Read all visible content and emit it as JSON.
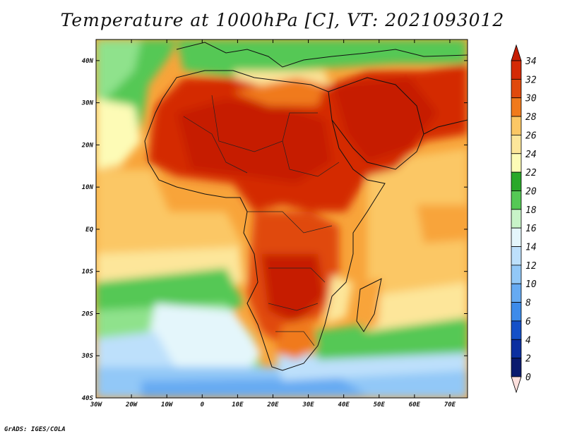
{
  "title": "Temperature at 1000hPa [C], VT: 2021093012",
  "credit": "GrADS: IGES/COLA",
  "map": {
    "lon_range": [
      -30,
      75
    ],
    "lat_range": [
      -40,
      45
    ],
    "lon_ticks": [
      "30W",
      "20W",
      "10W",
      "0",
      "10E",
      "20E",
      "30E",
      "40E",
      "50E",
      "60E",
      "70E"
    ],
    "lat_ticks": [
      "40N",
      "30N",
      "20N",
      "10N",
      "EQ",
      "10S",
      "20S",
      "30S",
      "40S"
    ]
  },
  "colorbar": {
    "labels": [
      "34",
      "32",
      "30",
      "28",
      "26",
      "24",
      "22",
      "20",
      "18",
      "16",
      "14",
      "12",
      "10",
      "8",
      "6",
      "4",
      "2",
      "0"
    ],
    "colors": [
      "#fde0dd",
      "#0a1a6e",
      "#0b2fa0",
      "#1450c8",
      "#2b6fe0",
      "#3d8bea",
      "#66aaf2",
      "#92c8f7",
      "#bde0fb",
      "#e4f6fb",
      "#c8f3c8",
      "#8fe28c",
      "#55c855",
      "#2aa82a",
      "#fdfbb6",
      "#fde69a",
      "#fbc765",
      "#f8a43a",
      "#f07a1c",
      "#e04a0c",
      "#d42a06",
      "#c61e04"
    ]
  }
}
